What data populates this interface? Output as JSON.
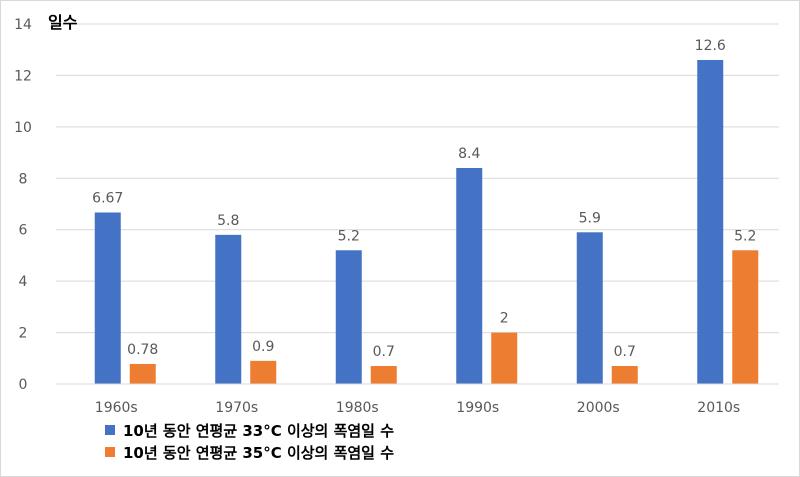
{
  "chart_data": {
    "type": "bar",
    "ylabel": "일수",
    "xlabel": "",
    "categories": [
      "1960s",
      "1970s",
      "1980s",
      "1990s",
      "2000s",
      "2010s"
    ],
    "series": [
      {
        "name": "10년 동안 연평균 33°C 이상의 폭염일 수",
        "color": "#4472c4",
        "values": [
          6.67,
          5.8,
          5.2,
          8.4,
          5.9,
          12.6
        ],
        "labels": [
          "6.67",
          "5.8",
          "5.2",
          "8.4",
          "5.9",
          "12.6"
        ]
      },
      {
        "name": "10년 동안 연평균 35°C 이상의 폭염일 수",
        "color": "#ed7d31",
        "values": [
          0.78,
          0.9,
          0.7,
          2,
          0.7,
          5.2
        ],
        "labels": [
          "0.78",
          "0.9",
          "0.7",
          "2",
          "0.7",
          "5.2"
        ]
      }
    ],
    "ylim": [
      0,
      14
    ],
    "yticks": [
      0,
      2,
      4,
      6,
      8,
      10,
      12,
      14
    ],
    "grid": true,
    "legend_position": "bottom-left"
  }
}
